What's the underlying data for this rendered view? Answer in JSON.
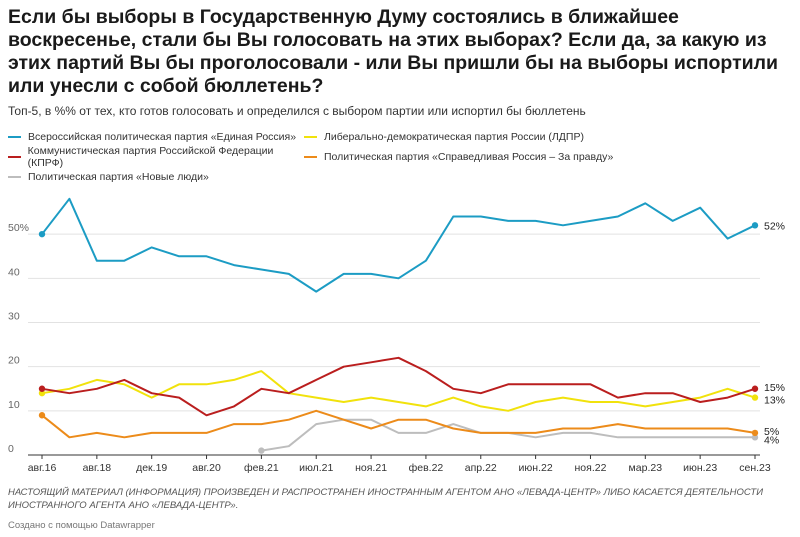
{
  "title": "Если бы выборы в Государственную Думу состоялись в ближайшее воскресенье, стали бы Вы голосовать на этих выборах? Если да, за какую из этих партий Вы бы проголосовали - или Вы пришли бы на выборы испортили или унесли с собой бюллетень?",
  "subtitle": "Топ-5, в %% от тех, кто готов голосовать и определился с выбором партии или испортил бы бюллетень",
  "footer": {
    "disclaimer": "НАСТОЯЩИЙ МАТЕРИАЛ (ИНФОРМАЦИЯ) ПРОИЗВЕДЕН И РАСПРОСТРАНЕН ИНОСТРАННЫМ АГЕНТОМ АНО «ЛЕВАДА-ЦЕНТР» ЛИБО КАСАЕТСЯ ДЕЯТЕЛЬНОСТИ ИНОСТРАННОГО АГЕНТА АНО «ЛЕВАДА-ЦЕНТР».",
    "credit": "Создано с помощью Datawrapper"
  },
  "chart_data": {
    "type": "line",
    "title": "",
    "xlabel": "",
    "ylabel": "",
    "ylim": [
      0,
      60
    ],
    "y_ticks": [
      0,
      10,
      20,
      30,
      40,
      50
    ],
    "y_tick_labels": [
      "0",
      "10",
      "20",
      "30",
      "40",
      "50%"
    ],
    "grid": "horizontal",
    "legend_position": "top",
    "x_tick_labels": [
      "авг.16",
      "авг.18",
      "дек.19",
      "авг.20",
      "фев.21",
      "июл.21",
      "ноя.21",
      "фев.22",
      "апр.22",
      "июн.22",
      "ноя.22",
      "мар.23",
      "июн.23",
      "сен.23"
    ],
    "x_tick_positions": [
      0,
      2,
      4,
      6,
      8,
      10,
      12,
      14,
      16,
      18,
      20,
      22,
      24,
      26
    ],
    "series": [
      {
        "name": "Всероссийская политическая партия «Единая Россия»",
        "color": "#1c9cc4",
        "values": [
          50,
          58,
          44,
          44,
          47,
          45,
          45,
          43,
          42,
          41,
          37,
          41,
          41,
          40,
          44,
          54,
          54,
          53,
          53,
          52,
          53,
          54,
          57,
          53,
          56,
          49,
          52
        ],
        "start_index": 0,
        "end_label": "52%"
      },
      {
        "name": "Либерально-демократическая партия России (ЛДПР)",
        "color": "#f1e20c",
        "values": [
          14,
          15,
          17,
          16,
          13,
          16,
          16,
          17,
          19,
          14,
          13,
          12,
          13,
          12,
          11,
          13,
          11,
          10,
          12,
          13,
          12,
          12,
          11,
          12,
          13,
          15,
          13
        ],
        "start_index": 0,
        "end_label": "13%"
      },
      {
        "name": "Коммунистическая партия Российской Федерации (КПРФ)",
        "color": "#ba1e1e",
        "values": [
          15,
          14,
          15,
          17,
          14,
          13,
          9,
          11,
          15,
          14,
          17,
          20,
          21,
          22,
          19,
          15,
          14,
          16,
          16,
          16,
          16,
          13,
          14,
          14,
          12,
          13,
          15
        ],
        "start_index": 0,
        "end_label": "15%"
      },
      {
        "name": "Политическая партия «Справедливая Россия – За правду»",
        "color": "#ec8b1a",
        "values": [
          9,
          4,
          5,
          4,
          5,
          5,
          5,
          7,
          7,
          8,
          10,
          8,
          6,
          8,
          8,
          6,
          5,
          5,
          5,
          6,
          6,
          7,
          6,
          6,
          6,
          6,
          5
        ],
        "start_index": 0,
        "end_label": "5%"
      },
      {
        "name": "Политическая партия «Новые люди»",
        "color": "#bdbdbd",
        "values": [
          1,
          2,
          7,
          8,
          8,
          5,
          5,
          7,
          5,
          5,
          4,
          5,
          5,
          4,
          4,
          4,
          4,
          4,
          4
        ],
        "start_index": 8,
        "end_label": "4%"
      }
    ]
  }
}
